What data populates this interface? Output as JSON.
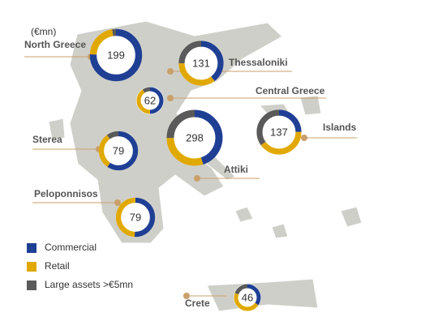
{
  "chart_data": {
    "type": "donut",
    "unit_label": "(€mn)",
    "series": [
      {
        "name": "Commercial",
        "color": "#1f3f94"
      },
      {
        "name": "Retail",
        "color": "#e1a900"
      },
      {
        "name": "Large assets >€5mn",
        "color": "#5a5a5a"
      }
    ],
    "regions": [
      {
        "label": "North Greece",
        "total": 199,
        "values": [
          150,
          44,
          5
        ]
      },
      {
        "label": "Thessaloniki",
        "total": 131,
        "values": [
          52,
          46,
          33
        ]
      },
      {
        "label": "Central Greece",
        "total": 62,
        "values": [
          31,
          25,
          6
        ]
      },
      {
        "label": "Sterea",
        "total": 79,
        "values": [
          47,
          24,
          8
        ]
      },
      {
        "label": "Attiki",
        "total": 298,
        "values": [
          134,
          89,
          75
        ]
      },
      {
        "label": "Islands",
        "total": 137,
        "values": [
          34,
          55,
          48
        ]
      },
      {
        "label": "Peloponnisos",
        "total": 79,
        "values": [
          40,
          39,
          0
        ]
      },
      {
        "label": "Crete",
        "total": 46,
        "values": [
          16,
          21,
          9
        ]
      }
    ]
  }
}
